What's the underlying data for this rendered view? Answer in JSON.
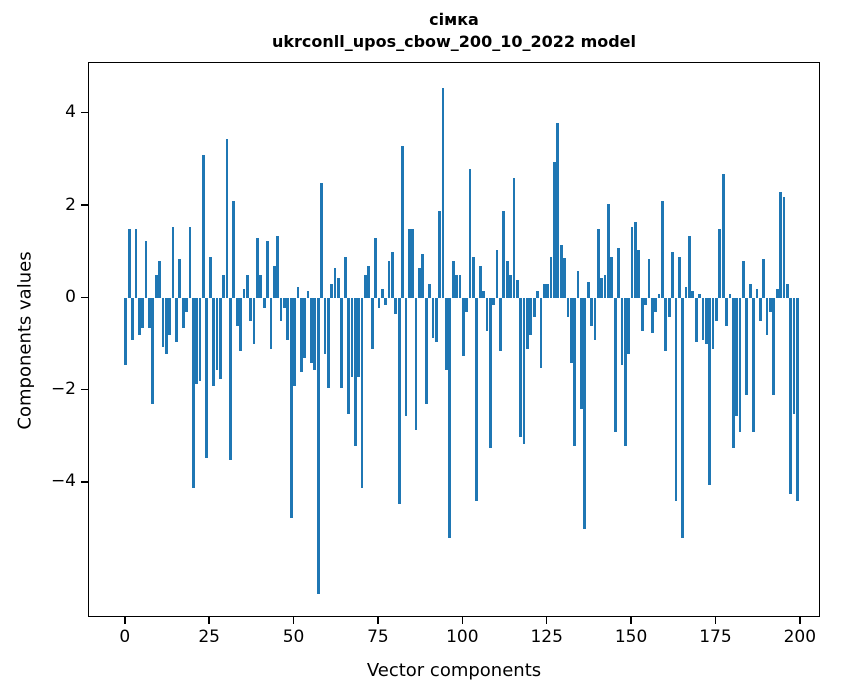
{
  "title": "сімка",
  "subtitle": "ukrconll_upos_cbow_200_10_2022 model",
  "xlabel": "Vector components",
  "ylabel": "Components values",
  "bar_color": "#1f77b4",
  "axis_color": "#000000",
  "background_color": "#ffffff",
  "chart_data": {
    "type": "bar",
    "title": "сімка",
    "subtitle": "ukrconll_upos_cbow_200_10_2022 model",
    "xlabel": "Vector components",
    "ylabel": "Components values",
    "x_start": 0,
    "x_end": 199,
    "xlim": [
      -11,
      210
    ],
    "ylim": [
      -6.95,
      5.1
    ],
    "x_ticks": [
      0,
      25,
      50,
      75,
      100,
      125,
      150,
      175,
      200
    ],
    "y_ticks": [
      4,
      2,
      0,
      -2,
      -4
    ],
    "y_tick_labels": [
      "4",
      "2",
      "0",
      "−2",
      "−4"
    ],
    "grid": false,
    "legend": false,
    "series_name": "component values",
    "values": [
      -1.45,
      1.5,
      -0.9,
      1.5,
      -0.8,
      -0.65,
      1.25,
      -0.65,
      -2.3,
      0.5,
      0.8,
      -1.05,
      -1.2,
      -0.8,
      1.55,
      -0.95,
      0.85,
      -0.65,
      -0.3,
      1.55,
      -4.1,
      -1.85,
      -1.8,
      3.1,
      -3.45,
      0.9,
      -1.9,
      -1.55,
      -1.75,
      0.5,
      3.45,
      -3.5,
      2.1,
      -0.6,
      -1.15,
      0.2,
      0.5,
      -0.5,
      -1.0,
      1.3,
      0.5,
      -0.2,
      1.25,
      -1.1,
      0.7,
      1.35,
      -0.5,
      -0.2,
      -0.9,
      -4.75,
      -1.9,
      0.25,
      -1.6,
      -1.3,
      0.15,
      -1.4,
      -1.55,
      -6.4,
      2.5,
      -1.2,
      -1.95,
      0.3,
      0.65,
      0.45,
      -1.95,
      0.9,
      -2.5,
      -1.7,
      -3.2,
      -1.7,
      -4.1,
      0.5,
      0.7,
      -1.1,
      1.3,
      -0.2,
      0.2,
      -0.15,
      0.8,
      1.0,
      -0.35,
      -4.45,
      3.3,
      -2.55,
      1.5,
      1.5,
      -2.85,
      0.65,
      0.95,
      -2.3,
      0.3,
      -0.85,
      -0.95,
      1.9,
      4.55,
      -1.55,
      -5.2,
      0.8,
      0.5,
      0.5,
      -1.25,
      -0.3,
      2.8,
      0.9,
      -4.4,
      0.7,
      0.15,
      -0.7,
      -3.25,
      -0.15,
      1.05,
      -1.15,
      1.9,
      0.8,
      0.5,
      2.6,
      0.4,
      -3.0,
      -3.15,
      -1.1,
      -0.8,
      -0.4,
      0.15,
      -1.5,
      0.3,
      0.3,
      0.9,
      2.95,
      3.8,
      1.15,
      0.87,
      -0.4,
      -1.4,
      -3.2,
      0.6,
      -2.4,
      -5.0,
      0.35,
      -0.6,
      -0.9,
      1.5,
      0.45,
      0.5,
      2.05,
      0.9,
      -2.9,
      1.1,
      -1.45,
      -3.2,
      -1.2,
      1.55,
      1.65,
      1.05,
      -0.7,
      -0.15,
      0.85,
      -0.75,
      -0.3,
      0.1,
      2.1,
      -1.15,
      -0.4,
      1.0,
      -4.4,
      0.9,
      -5.2,
      0.25,
      1.35,
      0.15,
      -0.95,
      0.1,
      -0.9,
      -1.0,
      -4.05,
      -1.1,
      -0.5,
      1.5,
      2.7,
      -0.6,
      0.1,
      -3.25,
      -2.55,
      -2.9,
      0.8,
      -2.1,
      0.3,
      -2.9,
      0.2,
      -0.5,
      0.85,
      -0.8,
      -0.3,
      -2.1,
      0.2,
      2.3,
      2.2,
      0.3,
      -4.25,
      -2.5,
      -4.4
    ]
  }
}
